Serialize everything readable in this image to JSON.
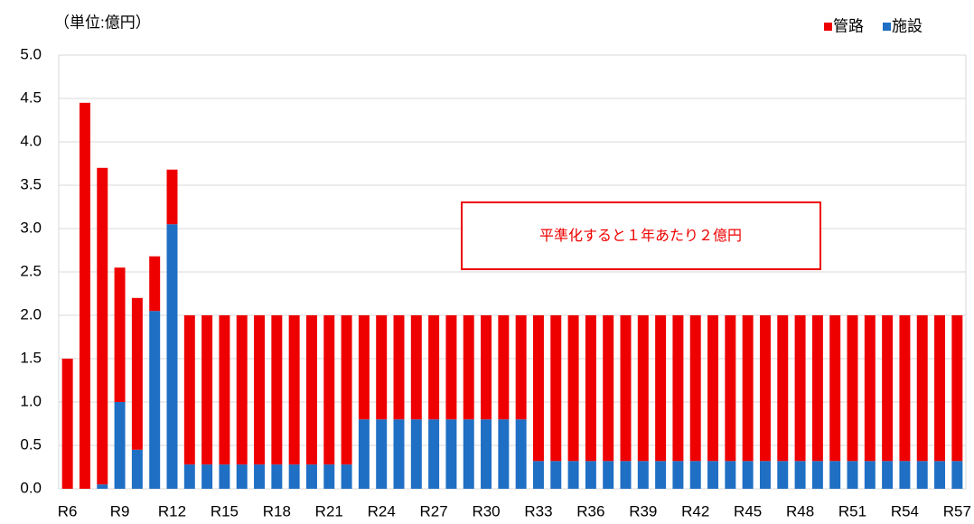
{
  "chart_data": {
    "type": "stacked_bar",
    "unit_label": "（単位:億円）",
    "annotation": "平準化すると１年あたり２億円",
    "categories": [
      "R6",
      null,
      null,
      "R9",
      null,
      null,
      "R12",
      null,
      null,
      "R15",
      null,
      null,
      "R18",
      null,
      null,
      "R21",
      null,
      null,
      "R24",
      null,
      null,
      "R27",
      null,
      null,
      "R30",
      null,
      null,
      "R33",
      null,
      null,
      "R36",
      null,
      null,
      "R39",
      null,
      null,
      "R42",
      null,
      null,
      "R45",
      null,
      null,
      "R48",
      null,
      null,
      "R51",
      null,
      null,
      "R54",
      null,
      null,
      "R57"
    ],
    "series": [
      {
        "name": "施設",
        "color": "#1f6fc4",
        "values": [
          0,
          0,
          0.05,
          1.0,
          0.45,
          2.05,
          3.05,
          0.28,
          0.28,
          0.28,
          0.28,
          0.28,
          0.28,
          0.28,
          0.28,
          0.28,
          0.28,
          0.8,
          0.8,
          0.8,
          0.8,
          0.8,
          0.8,
          0.8,
          0.8,
          0.8,
          0.8,
          0.32,
          0.32,
          0.32,
          0.32,
          0.32,
          0.32,
          0.32,
          0.32,
          0.32,
          0.32,
          0.32,
          0.32,
          0.32,
          0.32,
          0.32,
          0.32,
          0.32,
          0.32,
          0.32,
          0.32,
          0.32,
          0.32,
          0.32,
          0.32,
          0.32
        ]
      },
      {
        "name": "管路",
        "color": "#ee0000",
        "values": [
          1.5,
          4.45,
          3.65,
          1.55,
          1.75,
          0.63,
          0.63,
          1.72,
          1.72,
          1.72,
          1.72,
          1.72,
          1.72,
          1.72,
          1.72,
          1.72,
          1.72,
          1.2,
          1.2,
          1.2,
          1.2,
          1.2,
          1.2,
          1.2,
          1.2,
          1.2,
          1.2,
          1.68,
          1.68,
          1.68,
          1.68,
          1.68,
          1.68,
          1.68,
          1.68,
          1.68,
          1.68,
          1.68,
          1.68,
          1.68,
          1.68,
          1.68,
          1.68,
          1.68,
          1.68,
          1.68,
          1.68,
          1.68,
          1.68,
          1.68,
          1.68,
          1.68
        ]
      }
    ],
    "legend_order": [
      "管路",
      "施設"
    ],
    "ylim": [
      0,
      5
    ],
    "yticks": [
      {
        "value": 0,
        "label": "0.0"
      },
      0.5,
      {
        "value": 1,
        "label": "1.0"
      },
      1.5,
      {
        "value": 2,
        "label": "2.0"
      },
      2.5,
      {
        "value": 3,
        "label": "3.0"
      },
      3.5,
      {
        "value": 4,
        "label": "4.0"
      },
      4.5,
      {
        "value": 5,
        "label": "5.0"
      }
    ],
    "grid": true,
    "legend": "top-right"
  }
}
